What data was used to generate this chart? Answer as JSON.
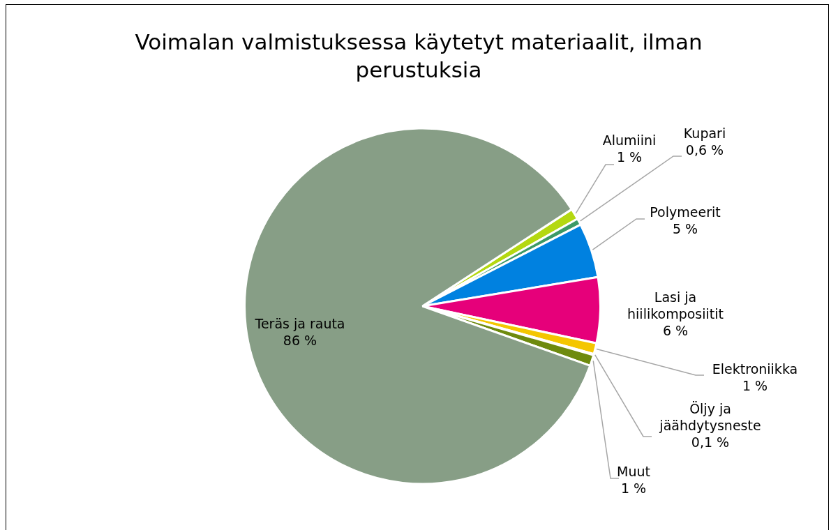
{
  "chart_data": {
    "type": "pie",
    "title": "Voimalan valmistuksessa käytetyt materiaalit, ilman perustuksia",
    "categories": [
      "Alumiini",
      "Kupari",
      "Polymeerit",
      "Lasi ja hiilikomposiitit",
      "Elektroniikka",
      "Öljy ja jäähdytysneste",
      "Muut",
      "Teräs ja rauta"
    ],
    "values": [
      1,
      0.6,
      5,
      6,
      1,
      0.1,
      1,
      86
    ],
    "colors": [
      "#b4d811",
      "#3c9a66",
      "#0081e0",
      "#e6007a",
      "#f4c600",
      "#7f7f7f",
      "#6e8a0e",
      "#879e86"
    ],
    "value_labels": [
      "1 %",
      "0,6 %",
      "5 %",
      "6 %",
      "1 %",
      "0,1 %",
      "1 %",
      "86 %"
    ],
    "legend": false
  }
}
